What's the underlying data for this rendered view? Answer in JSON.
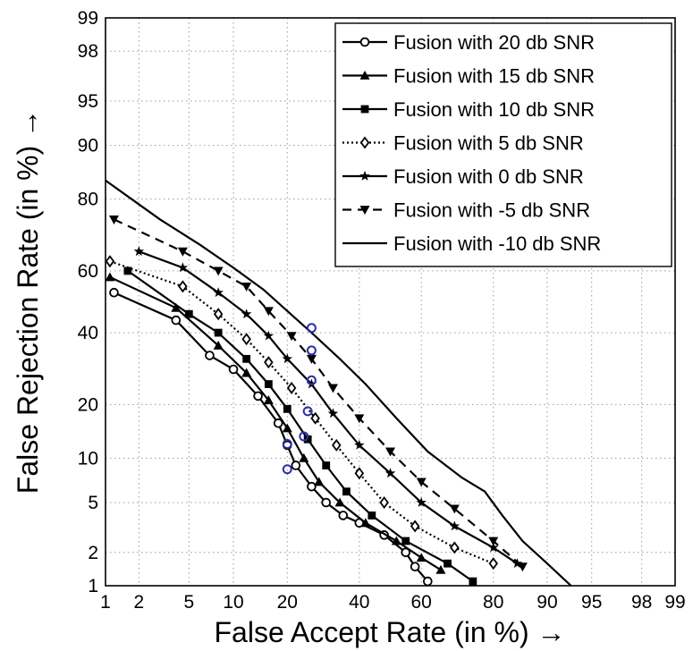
{
  "chart_data": {
    "type": "line",
    "scale": "normal-probability (DET)",
    "xlabel": "False Accept Rate (in %) →",
    "ylabel": "False Rejection Rate (in %) →",
    "xticks": [
      1,
      2,
      5,
      10,
      20,
      40,
      60,
      80,
      90,
      95,
      98,
      99
    ],
    "yticks": [
      1,
      2,
      5,
      10,
      20,
      40,
      60,
      80,
      90,
      95,
      98,
      99
    ],
    "xlim": [
      1,
      99
    ],
    "ylim": [
      1,
      99
    ],
    "grid": true,
    "legend_position": "top-right",
    "series": [
      {
        "name": "Fusion with 20 db SNR",
        "marker": "circle",
        "line": "solid",
        "x": [
          1.2,
          4,
          7,
          10,
          14,
          18,
          20,
          22,
          26,
          30,
          35,
          40,
          48,
          55,
          58,
          62
        ],
        "y": [
          53,
          44,
          33,
          29,
          22,
          16,
          12,
          9,
          6.5,
          5,
          4,
          3.5,
          2.8,
          2,
          1.5,
          1.1
        ]
      },
      {
        "name": "Fusion with 15 db SNR",
        "marker": "triangle-up",
        "line": "solid",
        "x": [
          1.1,
          4,
          8,
          12,
          16,
          20,
          24,
          28,
          34,
          42,
          52,
          60,
          66
        ],
        "y": [
          58,
          48,
          36,
          28,
          21,
          15,
          10,
          7,
          5,
          3.5,
          2.5,
          1.8,
          1.4
        ]
      },
      {
        "name": "Fusion with 10 db SNR",
        "marker": "square",
        "line": "solid",
        "x": [
          1.6,
          5,
          8,
          12,
          16,
          20,
          25,
          30,
          36,
          44,
          55,
          68,
          75
        ],
        "y": [
          60,
          46,
          40,
          32,
          25,
          19,
          13,
          9,
          6,
          4,
          2.5,
          1.6,
          1.1
        ]
      },
      {
        "name": "Fusion with 5 db SNR",
        "marker": "diamond-open",
        "line": "dotted",
        "x": [
          1.1,
          4.5,
          8,
          12,
          16,
          21,
          27,
          33,
          40,
          48,
          58,
          70,
          80
        ],
        "y": [
          63,
          55,
          46,
          38,
          31,
          24,
          17,
          12,
          8,
          5,
          3.3,
          2.2,
          1.6
        ]
      },
      {
        "name": "Fusion with 0 db SNR",
        "marker": "star",
        "line": "solid",
        "x": [
          2,
          4.5,
          8,
          12,
          16,
          20,
          26,
          32,
          40,
          50,
          60,
          70,
          80,
          85
        ],
        "y": [
          66,
          61,
          53,
          46,
          39,
          32,
          25,
          18,
          12,
          8,
          5,
          3.3,
          2.2,
          1.6
        ]
      },
      {
        "name": "Fusion with -5 db SNR",
        "marker": "triangle-down",
        "line": "dashed",
        "x": [
          1.2,
          4.5,
          8,
          12,
          16,
          21,
          26,
          32,
          40,
          50,
          60,
          70,
          80,
          86
        ],
        "y": [
          75,
          66,
          60,
          55,
          47,
          39,
          32,
          24,
          17,
          11,
          7,
          4.5,
          2.5,
          1.5
        ]
      },
      {
        "name": "Fusion with -10 db SNR",
        "marker": "none",
        "line": "solid",
        "x": [
          1,
          3,
          6,
          10,
          15,
          20,
          26,
          34,
          42,
          52,
          62,
          72,
          78,
          82,
          86,
          90,
          93
        ],
        "y": [
          84,
          75,
          68,
          61,
          54,
          47,
          40,
          32,
          25,
          17,
          11,
          7.5,
          6,
          4,
          2.5,
          1.6,
          1
        ]
      }
    ],
    "annotations": [
      {
        "x": 26,
        "y": 41.5,
        "color": "#2f2fa8"
      },
      {
        "x": 26,
        "y": 34.5,
        "color": "#2f2fa8"
      },
      {
        "x": 26,
        "y": 26,
        "color": "#2f2fa8"
      },
      {
        "x": 25,
        "y": 18.5,
        "color": "#2f2fa8"
      },
      {
        "x": 24,
        "y": 13.5,
        "color": "#2f2fa8"
      },
      {
        "x": 20,
        "y": 12.2,
        "color": "#2f2fa8"
      },
      {
        "x": 20,
        "y": 8.5,
        "color": "#2f2fa8"
      }
    ]
  }
}
